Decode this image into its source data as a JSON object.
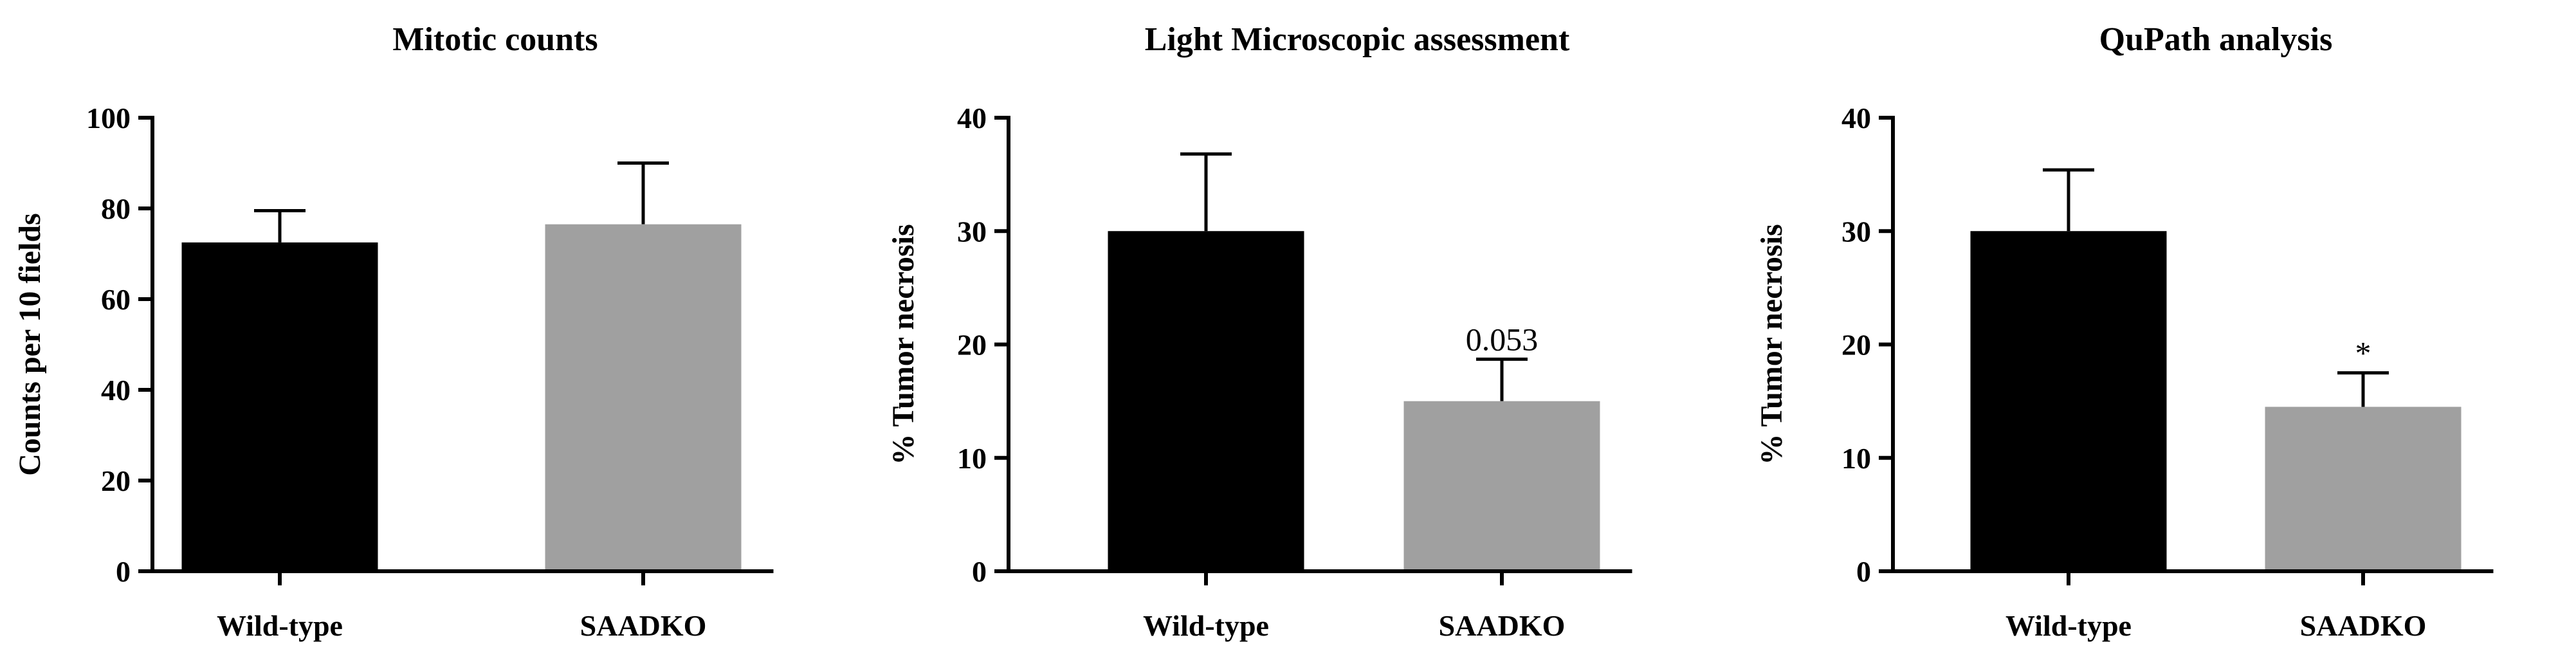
{
  "chart_data": [
    {
      "type": "bar",
      "title": "Mitotic counts",
      "ylabel": "Counts per 10 fields",
      "categories": [
        "Wild-type",
        "SAADKO"
      ],
      "values": [
        72.5,
        76.5
      ],
      "errors": [
        7.0,
        13.5
      ],
      "colors": [
        "#000000",
        "#a0a0a0"
      ],
      "ylim": [
        0,
        100
      ],
      "yticks": [
        0,
        20,
        40,
        60,
        80,
        100
      ],
      "annotations": [
        "",
        ""
      ]
    },
    {
      "type": "bar",
      "title": "Light Microscopic assessment",
      "ylabel": "% Tumor necrosis",
      "categories": [
        "Wild-type",
        "SAADKO"
      ],
      "values": [
        30.0,
        15.0
      ],
      "errors": [
        6.8,
        3.7
      ],
      "colors": [
        "#000000",
        "#a0a0a0"
      ],
      "ylim": [
        0,
        40
      ],
      "yticks": [
        0,
        10,
        20,
        30,
        40
      ],
      "annotations": [
        "",
        "0.053"
      ]
    },
    {
      "type": "bar",
      "title": "QuPath analysis",
      "ylabel": "% Tumor necrosis",
      "categories": [
        "Wild-type",
        "SAADKO"
      ],
      "values": [
        30.0,
        14.5
      ],
      "errors": [
        5.4,
        3.0
      ],
      "colors": [
        "#000000",
        "#a0a0a0"
      ],
      "ylim": [
        0,
        40
      ],
      "yticks": [
        0,
        10,
        20,
        30,
        40
      ],
      "annotations": [
        "",
        "*"
      ]
    }
  ]
}
